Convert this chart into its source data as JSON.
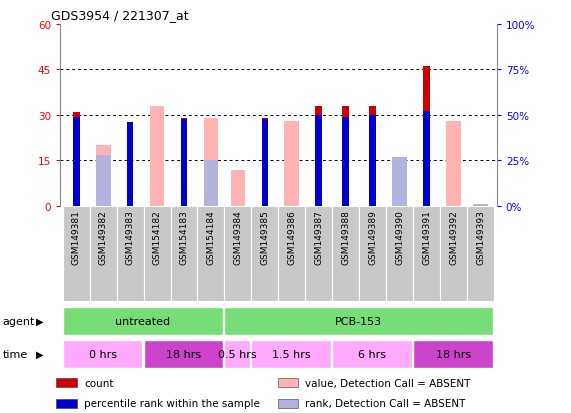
{
  "title": "GDS3954 / 221307_at",
  "samples": [
    "GSM149381",
    "GSM149382",
    "GSM149383",
    "GSM154182",
    "GSM154183",
    "GSM154184",
    "GSM149384",
    "GSM149385",
    "GSM149386",
    "GSM149387",
    "GSM149388",
    "GSM149389",
    "GSM149390",
    "GSM149391",
    "GSM149392",
    "GSM149393"
  ],
  "count": [
    31,
    null,
    27,
    null,
    29,
    null,
    null,
    29,
    null,
    33,
    33,
    33,
    null,
    46,
    null,
    null
  ],
  "rank_pct": [
    49,
    null,
    46,
    null,
    48,
    null,
    null,
    48,
    null,
    50,
    49,
    50,
    null,
    52,
    null,
    null
  ],
  "value_absent": [
    null,
    20,
    null,
    33,
    null,
    29,
    12,
    null,
    28,
    null,
    null,
    null,
    15,
    null,
    28,
    null
  ],
  "rank_absent_pct": [
    null,
    28,
    null,
    null,
    null,
    25,
    null,
    null,
    null,
    null,
    null,
    null,
    27,
    null,
    null,
    1
  ],
  "ylim_left": [
    0,
    60
  ],
  "ylim_right": [
    0,
    100
  ],
  "yticks_left": [
    0,
    15,
    30,
    45,
    60
  ],
  "yticks_right": [
    0,
    25,
    50,
    75,
    100
  ],
  "ytick_labels_left": [
    "0",
    "15",
    "30",
    "45",
    "60"
  ],
  "ytick_labels_right": [
    "0%",
    "25%",
    "50%",
    "75%",
    "100%"
  ],
  "color_count": "#cc0000",
  "color_rank": "#0000cc",
  "color_value_absent": "#ffb3b3",
  "color_rank_absent": "#b3b3dd",
  "bg_plot": "#ffffff",
  "bg_sample": "#c8c8c8",
  "agent_groups": [
    {
      "label": "untreated",
      "start": 0,
      "end": 6,
      "color": "#77dd77"
    },
    {
      "label": "PCB-153",
      "start": 6,
      "end": 16,
      "color": "#77dd77"
    }
  ],
  "time_groups": [
    {
      "label": "0 hrs",
      "start": 0,
      "end": 3,
      "color": "#ffaaff"
    },
    {
      "label": "18 hrs",
      "start": 3,
      "end": 6,
      "color": "#cc44cc"
    },
    {
      "label": "0.5 hrs",
      "start": 6,
      "end": 7,
      "color": "#ffaaff"
    },
    {
      "label": "1.5 hrs",
      "start": 7,
      "end": 10,
      "color": "#ffaaff"
    },
    {
      "label": "6 hrs",
      "start": 10,
      "end": 13,
      "color": "#ffaaff"
    },
    {
      "label": "18 hrs",
      "start": 13,
      "end": 16,
      "color": "#cc44cc"
    }
  ]
}
